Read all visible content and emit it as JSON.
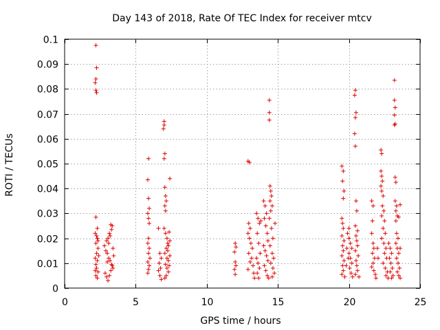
{
  "chart_data": {
    "type": "scatter",
    "title": "Day 143 of 2018, Rate Of TEC Index for receiver mtcv",
    "xlabel": "GPS time / hours",
    "ylabel": "ROTI / TECUs",
    "xlim": [
      0,
      25
    ],
    "ylim": [
      0,
      0.1
    ],
    "xticks": [
      0,
      5,
      10,
      15,
      20,
      25
    ],
    "xtick_labels": [
      "0",
      "5",
      "10",
      "15",
      "20",
      "25"
    ],
    "yticks": [
      0,
      0.01,
      0.02,
      0.03,
      0.04,
      0.05,
      0.06,
      0.07,
      0.08,
      0.09,
      0.1
    ],
    "ytick_labels": [
      "0",
      "0.01",
      "0.02",
      "0.03",
      "0.04",
      "0.05",
      "0.06",
      "0.07",
      "0.08",
      "0.09",
      "0.1"
    ],
    "grid": true,
    "marker": "+",
    "color": "#e00000",
    "series": [
      {
        "name": "ROTI",
        "points": [
          [
            2.2,
            0.0975
          ],
          [
            2.25,
            0.0885
          ],
          [
            2.2,
            0.084
          ],
          [
            2.15,
            0.0825
          ],
          [
            2.2,
            0.0795
          ],
          [
            2.25,
            0.0785
          ],
          [
            2.2,
            0.0285
          ],
          [
            2.3,
            0.024
          ],
          [
            2.15,
            0.022
          ],
          [
            2.3,
            0.02
          ],
          [
            2.2,
            0.018
          ],
          [
            2.35,
            0.016
          ],
          [
            2.25,
            0.014
          ],
          [
            2.15,
            0.012
          ],
          [
            2.3,
            0.011
          ],
          [
            2.2,
            0.0095
          ],
          [
            2.25,
            0.008
          ],
          [
            2.35,
            0.0065
          ],
          [
            2.2,
            0.005
          ],
          [
            2.3,
            0.004
          ],
          [
            2.15,
            0.007
          ],
          [
            2.4,
            0.013
          ],
          [
            2.35,
            0.019
          ],
          [
            2.25,
            0.021
          ],
          [
            2.8,
            0.017
          ],
          [
            2.9,
            0.015
          ],
          [
            3.0,
            0.014
          ],
          [
            3.1,
            0.012
          ],
          [
            3.2,
            0.011
          ],
          [
            3.3,
            0.0095
          ],
          [
            3.4,
            0.008
          ],
          [
            2.85,
            0.006
          ],
          [
            2.95,
            0.0045
          ],
          [
            3.05,
            0.003
          ],
          [
            3.15,
            0.005
          ],
          [
            3.25,
            0.007
          ],
          [
            3.35,
            0.009
          ],
          [
            3.1,
            0.018
          ],
          [
            3.2,
            0.021
          ],
          [
            3.3,
            0.0235
          ],
          [
            3.35,
            0.025
          ],
          [
            3.25,
            0.0255
          ],
          [
            3.15,
            0.022
          ],
          [
            3.05,
            0.02
          ],
          [
            2.95,
            0.019
          ],
          [
            3.4,
            0.016
          ],
          [
            3.45,
            0.013
          ],
          [
            3.0,
            0.0105
          ],
          [
            5.9,
            0.052
          ],
          [
            5.85,
            0.0435
          ],
          [
            5.9,
            0.036
          ],
          [
            5.95,
            0.032
          ],
          [
            5.85,
            0.03
          ],
          [
            5.9,
            0.028
          ],
          [
            5.95,
            0.026
          ],
          [
            5.9,
            0.02
          ],
          [
            5.85,
            0.018
          ],
          [
            5.95,
            0.016
          ],
          [
            5.9,
            0.014
          ],
          [
            6.0,
            0.012
          ],
          [
            5.85,
            0.0105
          ],
          [
            5.95,
            0.009
          ],
          [
            5.9,
            0.0075
          ],
          [
            5.85,
            0.006
          ],
          [
            6.6,
            0.024
          ],
          [
            6.7,
            0.014
          ],
          [
            6.8,
            0.012
          ],
          [
            6.65,
            0.01
          ],
          [
            6.75,
            0.008
          ],
          [
            6.6,
            0.007
          ],
          [
            6.7,
            0.005
          ],
          [
            6.8,
            0.0035
          ],
          [
            7.0,
            0.067
          ],
          [
            7.0,
            0.0655
          ],
          [
            6.95,
            0.064
          ],
          [
            7.05,
            0.054
          ],
          [
            7.0,
            0.052
          ],
          [
            7.05,
            0.0405
          ],
          [
            7.1,
            0.037
          ],
          [
            7.15,
            0.035
          ],
          [
            7.05,
            0.033
          ],
          [
            7.1,
            0.031
          ],
          [
            7.0,
            0.024
          ],
          [
            7.1,
            0.022
          ],
          [
            7.2,
            0.02
          ],
          [
            7.25,
            0.018
          ],
          [
            7.15,
            0.016
          ],
          [
            7.05,
            0.014
          ],
          [
            7.2,
            0.012
          ],
          [
            7.3,
            0.011
          ],
          [
            7.1,
            0.0095
          ],
          [
            7.2,
            0.008
          ],
          [
            7.3,
            0.0065
          ],
          [
            7.15,
            0.005
          ],
          [
            7.05,
            0.004
          ],
          [
            7.25,
            0.015
          ],
          [
            7.4,
            0.044
          ],
          [
            7.35,
            0.0225
          ],
          [
            7.4,
            0.019
          ],
          [
            7.3,
            0.017
          ],
          [
            7.4,
            0.013
          ],
          [
            7.35,
            0.009
          ],
          [
            12.0,
            0.018
          ],
          [
            12.05,
            0.0165
          ],
          [
            11.95,
            0.0145
          ],
          [
            12.0,
            0.0105
          ],
          [
            12.05,
            0.009
          ],
          [
            11.95,
            0.0075
          ],
          [
            12.0,
            0.0055
          ],
          [
            12.9,
            0.051
          ],
          [
            13.0,
            0.0505
          ],
          [
            12.95,
            0.026
          ],
          [
            13.05,
            0.024
          ],
          [
            12.9,
            0.022
          ],
          [
            13.0,
            0.02
          ],
          [
            13.1,
            0.018
          ],
          [
            13.2,
            0.016
          ],
          [
            12.95,
            0.014
          ],
          [
            13.15,
            0.012
          ],
          [
            13.05,
            0.0105
          ],
          [
            13.25,
            0.009
          ],
          [
            12.9,
            0.0075
          ],
          [
            13.3,
            0.006
          ],
          [
            13.35,
            0.004
          ],
          [
            13.5,
            0.03
          ],
          [
            13.6,
            0.028
          ],
          [
            13.7,
            0.026
          ],
          [
            13.55,
            0.022
          ],
          [
            13.65,
            0.018
          ],
          [
            13.75,
            0.014
          ],
          [
            13.5,
            0.012
          ],
          [
            13.6,
            0.01
          ],
          [
            13.7,
            0.008
          ],
          [
            13.55,
            0.006
          ],
          [
            13.65,
            0.004
          ],
          [
            13.8,
            0.027
          ],
          [
            14.0,
            0.035
          ],
          [
            14.1,
            0.033
          ],
          [
            14.2,
            0.03
          ],
          [
            14.05,
            0.028
          ],
          [
            14.15,
            0.025
          ],
          [
            14.25,
            0.022
          ],
          [
            14.3,
            0.019
          ],
          [
            14.0,
            0.017
          ],
          [
            14.1,
            0.015
          ],
          [
            14.2,
            0.013
          ],
          [
            14.3,
            0.011
          ],
          [
            14.05,
            0.009
          ],
          [
            14.15,
            0.007
          ],
          [
            14.25,
            0.005
          ],
          [
            14.35,
            0.004
          ],
          [
            14.4,
            0.0755
          ],
          [
            14.4,
            0.0705
          ],
          [
            14.4,
            0.0675
          ],
          [
            14.45,
            0.041
          ],
          [
            14.5,
            0.039
          ],
          [
            14.55,
            0.037
          ],
          [
            14.45,
            0.035
          ],
          [
            14.6,
            0.033
          ],
          [
            14.5,
            0.031
          ],
          [
            14.4,
            0.028
          ],
          [
            14.55,
            0.024
          ],
          [
            14.65,
            0.02
          ],
          [
            14.45,
            0.017
          ],
          [
            14.6,
            0.014
          ],
          [
            14.7,
            0.012
          ],
          [
            14.5,
            0.01
          ],
          [
            14.65,
            0.008
          ],
          [
            14.75,
            0.006
          ],
          [
            14.6,
            0.0045
          ],
          [
            14.8,
            0.026
          ],
          [
            19.5,
            0.049
          ],
          [
            19.6,
            0.047
          ],
          [
            19.55,
            0.043
          ],
          [
            19.65,
            0.039
          ],
          [
            19.6,
            0.036
          ],
          [
            19.5,
            0.028
          ],
          [
            19.55,
            0.026
          ],
          [
            19.6,
            0.024
          ],
          [
            19.5,
            0.021
          ],
          [
            19.65,
            0.019
          ],
          [
            19.55,
            0.017
          ],
          [
            19.6,
            0.015
          ],
          [
            19.5,
            0.013
          ],
          [
            19.65,
            0.011
          ],
          [
            19.55,
            0.009
          ],
          [
            19.6,
            0.007
          ],
          [
            19.5,
            0.0055
          ],
          [
            19.7,
            0.0045
          ],
          [
            20.0,
            0.02
          ],
          [
            20.1,
            0.018
          ],
          [
            20.2,
            0.016
          ],
          [
            20.0,
            0.014
          ],
          [
            20.1,
            0.012
          ],
          [
            20.2,
            0.01
          ],
          [
            20.05,
            0.008
          ],
          [
            20.15,
            0.006
          ],
          [
            20.25,
            0.0045
          ],
          [
            19.9,
            0.022
          ],
          [
            20.0,
            0.024
          ],
          [
            19.85,
            0.016
          ],
          [
            19.95,
            0.012
          ],
          [
            19.8,
            0.009
          ],
          [
            20.45,
            0.0795
          ],
          [
            20.4,
            0.0775
          ],
          [
            20.5,
            0.0705
          ],
          [
            20.45,
            0.0685
          ],
          [
            20.4,
            0.062
          ],
          [
            20.45,
            0.057
          ],
          [
            20.5,
            0.035
          ],
          [
            20.55,
            0.031
          ],
          [
            20.45,
            0.025
          ],
          [
            20.6,
            0.023
          ],
          [
            20.5,
            0.021
          ],
          [
            20.55,
            0.019
          ],
          [
            20.6,
            0.017
          ],
          [
            20.45,
            0.015
          ],
          [
            20.65,
            0.013
          ],
          [
            20.5,
            0.011
          ],
          [
            20.55,
            0.009
          ],
          [
            20.6,
            0.007
          ],
          [
            20.45,
            0.0055
          ],
          [
            20.7,
            0.0045
          ],
          [
            21.6,
            0.035
          ],
          [
            21.7,
            0.033
          ],
          [
            21.65,
            0.027
          ],
          [
            21.6,
            0.022
          ],
          [
            21.7,
            0.018
          ],
          [
            21.75,
            0.016
          ],
          [
            21.65,
            0.014
          ],
          [
            21.8,
            0.012
          ],
          [
            21.7,
            0.01
          ],
          [
            21.6,
            0.0085
          ],
          [
            21.75,
            0.007
          ],
          [
            21.85,
            0.0055
          ],
          [
            21.9,
            0.004
          ],
          [
            22.0,
            0.016
          ],
          [
            22.05,
            0.012
          ],
          [
            22.25,
            0.0555
          ],
          [
            22.3,
            0.054
          ],
          [
            22.25,
            0.047
          ],
          [
            22.3,
            0.045
          ],
          [
            22.35,
            0.043
          ],
          [
            22.25,
            0.041
          ],
          [
            22.3,
            0.039
          ],
          [
            22.4,
            0.037
          ],
          [
            22.35,
            0.033
          ],
          [
            22.45,
            0.031
          ],
          [
            22.3,
            0.029
          ],
          [
            22.5,
            0.027
          ],
          [
            22.4,
            0.024
          ],
          [
            22.55,
            0.022
          ],
          [
            22.3,
            0.02
          ],
          [
            22.45,
            0.018
          ],
          [
            22.6,
            0.016
          ],
          [
            22.5,
            0.014
          ],
          [
            22.65,
            0.012
          ],
          [
            22.4,
            0.01
          ],
          [
            22.55,
            0.008
          ],
          [
            22.7,
            0.0065
          ],
          [
            22.6,
            0.005
          ],
          [
            22.75,
            0.004
          ],
          [
            22.8,
            0.018
          ],
          [
            22.9,
            0.016
          ],
          [
            23.0,
            0.014
          ],
          [
            22.85,
            0.012
          ],
          [
            22.95,
            0.01
          ],
          [
            23.05,
            0.008
          ],
          [
            22.9,
            0.0065
          ],
          [
            23.1,
            0.005
          ],
          [
            23.0,
            0.004
          ],
          [
            23.2,
            0.0835
          ],
          [
            23.2,
            0.0755
          ],
          [
            23.25,
            0.0725
          ],
          [
            23.2,
            0.0695
          ],
          [
            23.25,
            0.066
          ],
          [
            23.2,
            0.0655
          ],
          [
            23.25,
            0.0445
          ],
          [
            23.3,
            0.0425
          ],
          [
            23.25,
            0.035
          ],
          [
            23.35,
            0.033
          ],
          [
            23.3,
            0.031
          ],
          [
            23.4,
            0.029
          ],
          [
            23.3,
            0.027
          ],
          [
            23.35,
            0.022
          ],
          [
            23.45,
            0.02
          ],
          [
            23.3,
            0.018
          ],
          [
            23.4,
            0.016
          ],
          [
            23.5,
            0.014
          ],
          [
            23.35,
            0.012
          ],
          [
            23.45,
            0.01
          ],
          [
            23.55,
            0.008
          ],
          [
            23.4,
            0.0065
          ],
          [
            23.5,
            0.005
          ],
          [
            23.6,
            0.004
          ],
          [
            23.6,
            0.0335
          ],
          [
            23.5,
            0.0285
          ],
          [
            23.6,
            0.016
          ]
        ]
      }
    ]
  }
}
